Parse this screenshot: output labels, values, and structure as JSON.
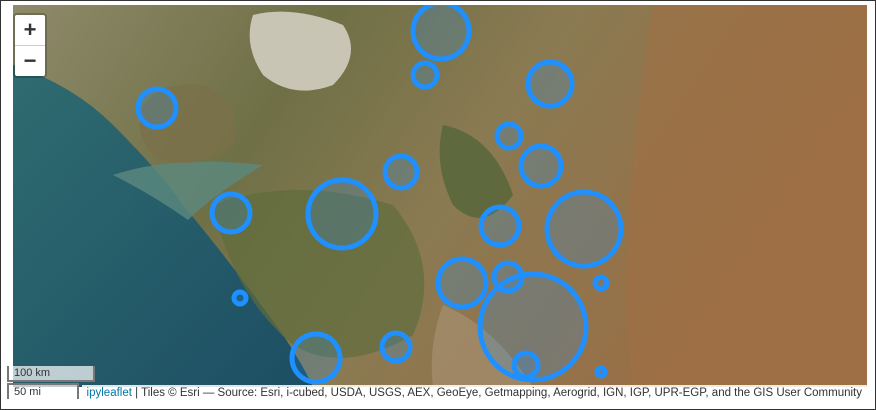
{
  "map": {
    "zoom_in_label": "+",
    "zoom_out_label": "−",
    "scale_metric": "100 km",
    "scale_imperial": "50 mi",
    "attribution": {
      "prefix": "ipyleaflet",
      "separator": " | ",
      "text": "Tiles © Esri — Source: Esri, i-cubed, USDA, USGS, AEX, GeoEye, Getmapping, Aerogrid, IGN, IGP, UPR-EGP, and the GIS User Community"
    },
    "circle_color": "#1e90ff",
    "basemap": "Esri satellite imagery"
  }
}
